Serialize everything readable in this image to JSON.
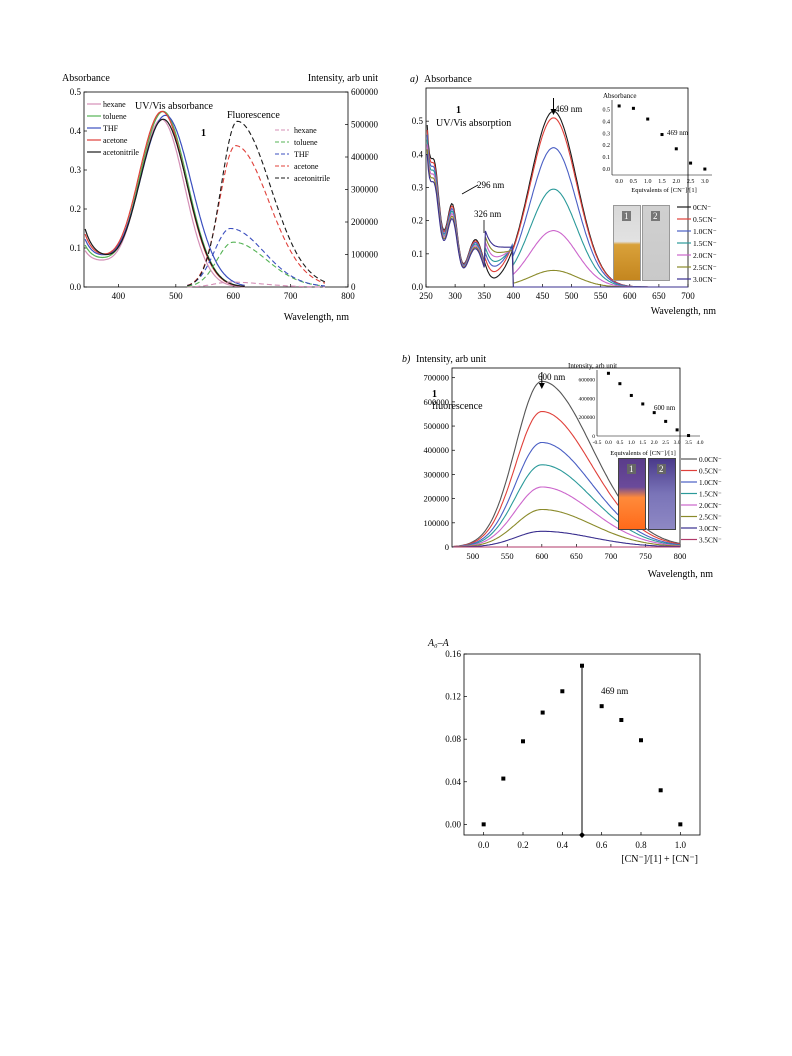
{
  "panel1": {
    "left_title": "Absorbance",
    "right_title": "Intensity, arb unit",
    "abs_label": "UV/Vis absorbance",
    "fl_label": "Fluorescence",
    "compound": "1",
    "xlabel": "Wavelength, nm"
  },
  "panel2": {
    "tag": "a)",
    "title": "Absorbance",
    "compound": "1",
    "subtitle": "UV/Vis absorption",
    "peak_label": "469 nm",
    "ann1": "296 nm",
    "ann2": "326 nm",
    "xlabel": "Wavelength, nm",
    "inset_title": "Absorbance",
    "inset_xlabel": "Equivalents of [CN⁻]/[1]",
    "inset_note": "469 nm",
    "vial_labels": [
      "1",
      "2"
    ]
  },
  "panel3": {
    "tag": "b)",
    "title": "Intensity, arb unit",
    "compound": "1",
    "subtitle": "fluorescence",
    "peak_label": "600 nm",
    "xlabel": "Wavelength, nm",
    "inset_title": "Intensity, arb unit",
    "inset_xlabel": "Equivalents of [CN⁻]/[1]",
    "inset_note": "600 nm",
    "vial_labels": [
      "1",
      "2"
    ]
  },
  "panel4": {
    "ylabel": "A₀–A",
    "xlabel": "[CN⁻]/[1] + [CN⁻]",
    "note": "469 nm"
  },
  "chart_data": [
    {
      "id": "solvent",
      "type": "line",
      "xlabel": "Wavelength, nm",
      "ylabel": "Absorbance",
      "y2label": "Intensity, arb unit",
      "xlim": [
        340,
        800
      ],
      "ylim": [
        0,
        0.5
      ],
      "y2lim": [
        0,
        600000
      ],
      "xticks": [
        400,
        500,
        600,
        700,
        800
      ],
      "yticks": [
        0.0,
        0.1,
        0.2,
        0.3,
        0.4,
        0.5
      ],
      "y2ticks": [
        0,
        100000,
        200000,
        300000,
        400000,
        500000,
        600000
      ],
      "legend_left": "top-left",
      "legend_right": "top-right",
      "absorbance_series": [
        {
          "name": "hexane",
          "color": "#d48fb6",
          "peak_x": 475,
          "peak_y": 0.43,
          "width": 40
        },
        {
          "name": "toluene",
          "color": "#55b355",
          "peak_x": 478,
          "peak_y": 0.45,
          "width": 42
        },
        {
          "name": "THF",
          "color": "#3b4fbf",
          "peak_x": 482,
          "peak_y": 0.44,
          "width": 45
        },
        {
          "name": "acetone",
          "color": "#e0403a",
          "peak_x": 476,
          "peak_y": 0.45,
          "width": 42
        },
        {
          "name": "acetonitrile",
          "color": "#1a1a1a",
          "peak_x": 478,
          "peak_y": 0.43,
          "width": 42
        }
      ],
      "fluorescence_series": [
        {
          "name": "hexane",
          "color": "#d48fb6",
          "peak_x": 595,
          "peak_y": 15000
        },
        {
          "name": "toluene",
          "color": "#55b355",
          "peak_x": 600,
          "peak_y": 138000
        },
        {
          "name": "THF",
          "color": "#3b4fbf",
          "peak_x": 595,
          "peak_y": 180000
        },
        {
          "name": "acetone",
          "color": "#e0403a",
          "peak_x": 604,
          "peak_y": 435000
        },
        {
          "name": "acetonitrile",
          "color": "#1a1a1a",
          "peak_x": 607,
          "peak_y": 510000
        }
      ]
    },
    {
      "id": "absorption_titration",
      "type": "line",
      "xlabel": "Wavelength, nm",
      "ylabel": "Absorbance",
      "xlim": [
        250,
        700
      ],
      "ylim": [
        0,
        0.6
      ],
      "xticks": [
        250,
        300,
        350,
        400,
        450,
        500,
        550,
        600,
        650,
        700
      ],
      "yticks": [
        0.0,
        0.1,
        0.2,
        0.3,
        0.4,
        0.5
      ],
      "legend": "right",
      "series": [
        {
          "name": "0CN⁻",
          "color": "#1a1a1a",
          "peak": 0.53
        },
        {
          "name": "0.5CN⁻",
          "color": "#e0403a",
          "peak": 0.51
        },
        {
          "name": "1.0CN⁻",
          "color": "#4a5fc4",
          "peak": 0.42
        },
        {
          "name": "1.5CN⁻",
          "color": "#2b9a9a",
          "peak": 0.295
        },
        {
          "name": "2.0CN⁻",
          "color": "#cc66cc",
          "peak": 0.17
        },
        {
          "name": "2.5CN⁻",
          "color": "#8a8a2a",
          "peak": 0.05
        },
        {
          "name": "3.0CN⁻",
          "color": "#3a2f8f",
          "peak": 0.0
        }
      ],
      "inset": {
        "type": "scatter",
        "x": [
          0.0,
          0.5,
          1.0,
          1.5,
          2.0,
          2.5,
          3.0
        ],
        "y": [
          0.53,
          0.51,
          0.42,
          0.29,
          0.17,
          0.05,
          0.0
        ],
        "xlim": [
          -0.25,
          3.25
        ],
        "ylim": [
          -0.05,
          0.58
        ],
        "xticks": [
          0.0,
          0.5,
          1.0,
          1.5,
          2.0,
          2.5,
          3.0
        ],
        "yticks": [
          0.0,
          0.1,
          0.2,
          0.3,
          0.4,
          0.5
        ]
      }
    },
    {
      "id": "fluorescence_titration",
      "type": "line",
      "xlabel": "Wavelength, nm",
      "ylabel": "Intensity, arb unit",
      "xlim": [
        470,
        800
      ],
      "ylim": [
        0,
        740000
      ],
      "xticks": [
        500,
        550,
        600,
        650,
        700,
        750,
        800
      ],
      "yticks": [
        0,
        100000,
        200000,
        300000,
        400000,
        500000,
        600000,
        700000
      ],
      "legend": "right",
      "series": [
        {
          "name": "0.0CN⁻",
          "color": "#555555",
          "peak": 685000
        },
        {
          "name": "0.5CN⁻",
          "color": "#e0403a",
          "peak": 560000
        },
        {
          "name": "1.0CN⁻",
          "color": "#4a5fc4",
          "peak": 432000
        },
        {
          "name": "1.5CN⁻",
          "color": "#2b9a9a",
          "peak": 340000
        },
        {
          "name": "2.0CN⁻",
          "color": "#cc66cc",
          "peak": 248000
        },
        {
          "name": "2.5CN⁻",
          "color": "#8a8a2a",
          "peak": 155000
        },
        {
          "name": "3.0CN⁻",
          "color": "#3a2f8f",
          "peak": 65000
        },
        {
          "name": "3.5CN⁻",
          "color": "#b03a6a",
          "peak": 0
        }
      ],
      "inset": {
        "type": "scatter",
        "x": [
          0.0,
          0.5,
          1.0,
          1.5,
          2.0,
          2.5,
          3.0,
          3.5
        ],
        "y": [
          665000,
          555000,
          430000,
          340000,
          248000,
          155000,
          65000,
          5000
        ],
        "xlim": [
          -0.5,
          4.0
        ],
        "ylim": [
          0,
          700000
        ],
        "xticks": [
          -0.5,
          0.0,
          0.5,
          1.0,
          1.5,
          2.0,
          2.5,
          3.0,
          3.5,
          4.0
        ],
        "yticks": [
          0,
          200000,
          400000,
          600000
        ]
      }
    },
    {
      "id": "job_plot",
      "type": "scatter",
      "xlabel": "[CN⁻]/[1] + [CN⁻]",
      "ylabel": "A₀–A",
      "xlim": [
        -0.1,
        1.1
      ],
      "ylim": [
        -0.01,
        0.16
      ],
      "xticks": [
        0.0,
        0.2,
        0.4,
        0.6,
        0.8,
        1.0
      ],
      "yticks": [
        0.0,
        0.04,
        0.08,
        0.12,
        0.16
      ],
      "x": [
        0.0,
        0.1,
        0.2,
        0.3,
        0.4,
        0.5,
        0.6,
        0.7,
        0.8,
        0.9,
        1.0
      ],
      "y": [
        0.0,
        0.043,
        0.078,
        0.105,
        0.125,
        0.149,
        0.111,
        0.098,
        0.079,
        0.032,
        0.0
      ],
      "vline_x": 0.5
    }
  ]
}
